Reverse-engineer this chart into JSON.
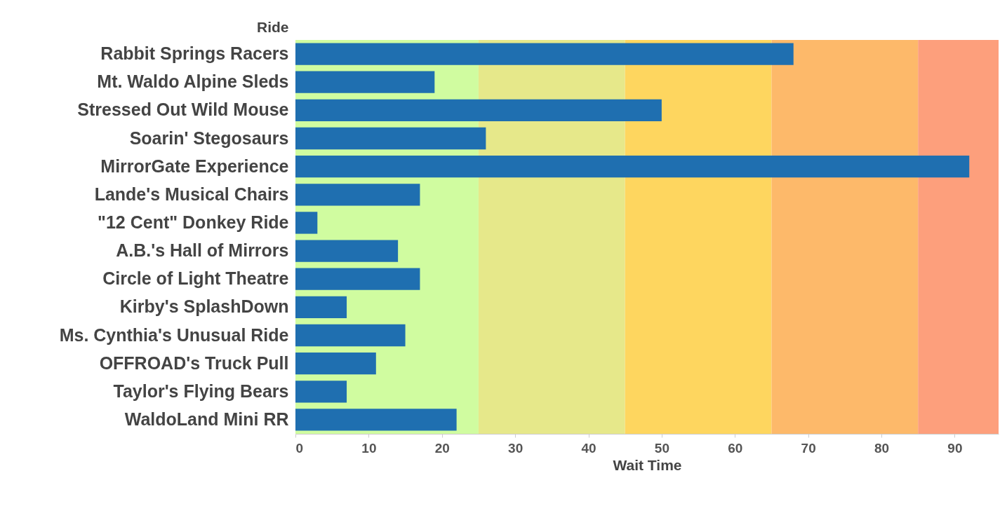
{
  "chart_data": {
    "type": "bar",
    "orientation": "horizontal",
    "xlabel": "Wait Time",
    "ylabel": "Ride",
    "categories": [
      "Rabbit Springs Racers",
      "Mt. Waldo Alpine Sleds",
      "Stressed Out Wild Mouse",
      "Soarin' Stegosaurs",
      "MirrorGate Experience",
      "Lande's Musical Chairs",
      "\"12 Cent\" Donkey Ride",
      "A.B.'s Hall of Mirrors",
      "Circle of Light Theatre",
      "Kirby's SplashDown",
      "Ms. Cynthia's Unusual Ride",
      "OFFROAD's Truck Pull",
      "Taylor's Flying Bears",
      "WaldoLand Mini RR"
    ],
    "values": [
      68,
      19,
      50,
      26,
      92,
      17,
      3,
      14,
      17,
      7,
      15,
      11,
      7,
      22
    ],
    "color": "#1f6fb0",
    "xlim": [
      0,
      96
    ],
    "xticks": [
      0,
      10,
      20,
      30,
      40,
      50,
      60,
      70,
      80,
      90
    ],
    "bands": [
      {
        "axis": "x",
        "from": 0,
        "to": 25,
        "color": "#d0fca0"
      },
      {
        "axis": "x",
        "from": 25,
        "to": 45,
        "color": "#e6e88a"
      },
      {
        "axis": "x",
        "from": 45,
        "to": 65,
        "color": "#fed65f"
      },
      {
        "axis": "x",
        "from": 65,
        "to": 85,
        "color": "#fdb96a"
      },
      {
        "axis": "x",
        "from": 85,
        "to": 96,
        "color": "#fd9f7c"
      }
    ],
    "grid": false
  }
}
